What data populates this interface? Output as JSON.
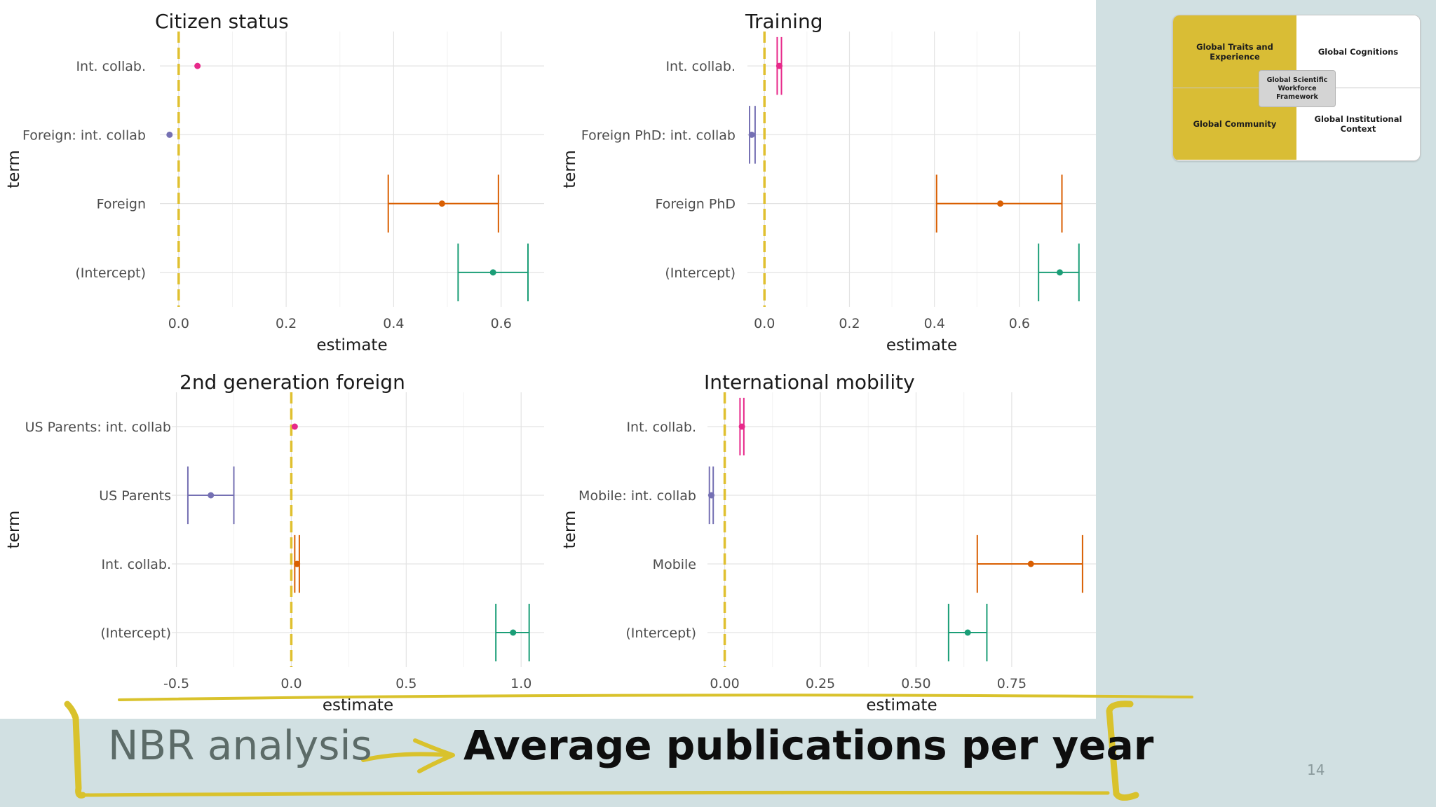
{
  "colors": {
    "background": "#d1e0e2",
    "zero_line": "#e0c030",
    "accent_yellow": "#d9bd35",
    "intercept": "#1b9e77",
    "main_effect": "#d95f02",
    "interaction": "#7570b3",
    "int_collab": "#e7298a"
  },
  "chart_data": [
    {
      "type": "coefficient_plot",
      "title": "Citizen status",
      "xlabel": "estimate",
      "ylabel": "term",
      "xlim": [
        -0.035,
        0.68
      ],
      "xticks": [
        0.0,
        0.2,
        0.4,
        0.6
      ],
      "xtick_labels": [
        "0.0",
        "0.2",
        "0.4",
        "0.6"
      ],
      "grid": true,
      "terms": [
        {
          "term": "Int. collab.",
          "estimate": 0.035,
          "low": null,
          "high": null,
          "color": "#e7298a"
        },
        {
          "term": "Foreign: int. collab",
          "estimate": -0.017,
          "low": null,
          "high": null,
          "color": "#7570b3"
        },
        {
          "term": "Foreign",
          "estimate": 0.49,
          "low": 0.39,
          "high": 0.595,
          "color": "#d95f02"
        },
        {
          "term": "(Intercept)",
          "estimate": 0.585,
          "low": 0.52,
          "high": 0.65,
          "color": "#1b9e77"
        }
      ]
    },
    {
      "type": "coefficient_plot",
      "title": "Training",
      "xlabel": "estimate",
      "ylabel": "term",
      "xlim": [
        -0.04,
        0.78
      ],
      "xticks": [
        0.0,
        0.2,
        0.4,
        0.6
      ],
      "xtick_labels": [
        "0.0",
        "0.2",
        "0.4",
        "0.6"
      ],
      "grid": true,
      "terms": [
        {
          "term": "Int. collab.",
          "estimate": 0.035,
          "low": 0.03,
          "high": 0.04,
          "color": "#e7298a"
        },
        {
          "term": "Foreign PhD: int. collab",
          "estimate": -0.03,
          "low": -0.035,
          "high": -0.022,
          "color": "#7570b3"
        },
        {
          "term": "Foreign PhD",
          "estimate": 0.555,
          "low": 0.405,
          "high": 0.7,
          "color": "#d95f02"
        },
        {
          "term": "(Intercept)",
          "estimate": 0.695,
          "low": 0.645,
          "high": 0.74,
          "color": "#1b9e77"
        }
      ]
    },
    {
      "type": "coefficient_plot",
      "title": "2nd generation foreign",
      "xlabel": "estimate",
      "ylabel": "term",
      "xlim": [
        -0.52,
        1.1
      ],
      "xticks": [
        -0.5,
        0.0,
        0.5,
        1.0
      ],
      "xtick_labels": [
        "-0.5",
        "0.0",
        "0.5",
        "1.0"
      ],
      "grid": true,
      "terms": [
        {
          "term": "US Parents: int. collab",
          "estimate": 0.015,
          "low": null,
          "high": null,
          "color": "#e7298a"
        },
        {
          "term": "US Parents",
          "estimate": -0.35,
          "low": -0.45,
          "high": -0.25,
          "color": "#7570b3"
        },
        {
          "term": "Int. collab.",
          "estimate": 0.025,
          "low": 0.015,
          "high": 0.035,
          "color": "#d95f02"
        },
        {
          "term": "(Intercept)",
          "estimate": 0.965,
          "low": 0.89,
          "high": 1.035,
          "color": "#1b9e77"
        }
      ]
    },
    {
      "type": "coefficient_plot",
      "title": "International mobility",
      "xlabel": "estimate",
      "ylabel": "term",
      "xlim": [
        -0.045,
        0.97
      ],
      "xticks": [
        0.0,
        0.25,
        0.5,
        0.75
      ],
      "xtick_labels": [
        "0.00",
        "0.25",
        "0.50",
        "0.75"
      ],
      "grid": true,
      "terms": [
        {
          "term": "Int. collab.",
          "estimate": 0.045,
          "low": 0.04,
          "high": 0.05,
          "color": "#e7298a"
        },
        {
          "term": "Mobile: int. collab",
          "estimate": -0.035,
          "low": -0.04,
          "high": -0.03,
          "color": "#7570b3"
        },
        {
          "term": "Mobile",
          "estimate": 0.8,
          "low": 0.66,
          "high": 0.935,
          "color": "#d95f02"
        },
        {
          "term": "(Intercept)",
          "estimate": 0.635,
          "low": 0.585,
          "high": 0.685,
          "color": "#1b9e77"
        }
      ]
    }
  ],
  "framework": {
    "top_left": "Global Traits and Experience",
    "top_right": "Global Cognitions",
    "bottom_left": "Global Community",
    "bottom_right": "Global Institutional Context",
    "center": "Global Scientific Workforce Framework"
  },
  "footer": {
    "left_text": "NBR analysis",
    "right_text": "Average publications per year",
    "arrow_icon": "arrow-right-icon"
  },
  "page_number": "14"
}
